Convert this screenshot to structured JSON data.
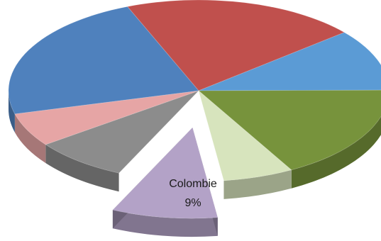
{
  "chart_data": {
    "type": "pie",
    "style": "3d-exploded",
    "title": "",
    "slices": [
      {
        "name": "",
        "value": 20,
        "color": "#c0504d"
      },
      {
        "name": "",
        "value": 11,
        "color": "#5b9bd5"
      },
      {
        "name": "",
        "value": 17,
        "color": "#77933c"
      },
      {
        "name": "",
        "value": 6,
        "color": "#d7e4bd"
      },
      {
        "name": "Colombie",
        "value": 9,
        "value_label": "9%",
        "color": "#b3a2c7",
        "exploded": true
      },
      {
        "name": "",
        "value": 8,
        "color": "#8c8c8c"
      },
      {
        "name": "",
        "value": 6,
        "color": "#e6a5a5"
      },
      {
        "name": "",
        "value": 23,
        "color": "#4f81bd"
      }
    ]
  }
}
